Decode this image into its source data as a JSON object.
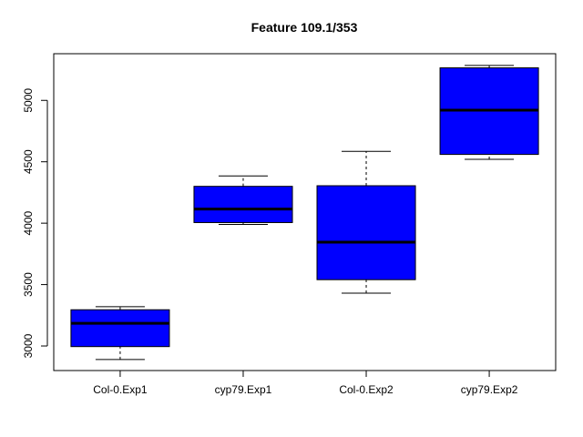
{
  "chart_data": {
    "type": "boxplot",
    "title": "Feature  109.1/353",
    "xlabel": "",
    "ylabel": "",
    "categories": [
      "Col-0.Exp1",
      "cyp79.Exp1",
      "Col-0.Exp2",
      "cyp79.Exp2"
    ],
    "boxes": [
      {
        "category": "Col-0.Exp1",
        "whisker_low": 2890,
        "q1": 2995,
        "median": 3185,
        "q3": 3295,
        "whisker_high": 3320
      },
      {
        "category": "cyp79.Exp1",
        "whisker_low": 3990,
        "q1": 4005,
        "median": 4115,
        "q3": 4300,
        "whisker_high": 4385
      },
      {
        "category": "Col-0.Exp2",
        "whisker_low": 3430,
        "q1": 3540,
        "median": 3845,
        "q3": 4305,
        "whisker_high": 4585
      },
      {
        "category": "cyp79.Exp2",
        "whisker_low": 4520,
        "q1": 4560,
        "median": 4920,
        "q3": 5265,
        "whisker_high": 5285
      }
    ],
    "ylim": [
      2800,
      5380
    ],
    "yticks": [
      3000,
      3500,
      4000,
      4500,
      5000
    ],
    "grid": false,
    "legend": "none",
    "colors": {
      "box_fill": "#0000ff",
      "box_border": "#000000",
      "median": "#000000",
      "whisker": "#000000"
    }
  }
}
